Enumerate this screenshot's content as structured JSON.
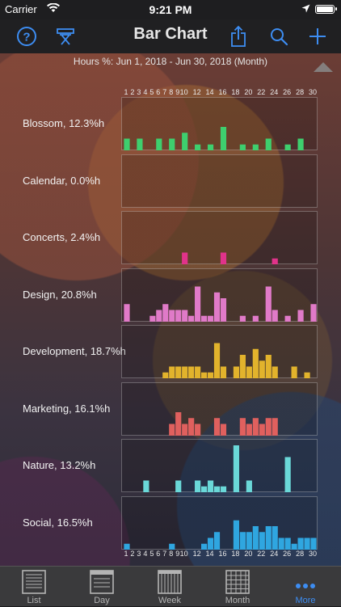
{
  "status_bar": {
    "carrier": "Carrier",
    "time": "9:21 PM"
  },
  "nav": {
    "title": "Bar Chart"
  },
  "header": {
    "subtitle": "Hours %: Jun 1, 2018 - Jun 30, 2018 (Month)"
  },
  "chart_data": {
    "type": "bar",
    "x_top_ticks": [
      "1",
      "2",
      "3",
      "4",
      "5",
      "6",
      "7",
      "8",
      "9",
      "10",
      "12",
      "14",
      "16",
      "18",
      "20",
      "22",
      "24",
      "26",
      "28",
      "30"
    ],
    "x_bottom_ticks": [
      "1",
      "2",
      "3",
      "4",
      "5",
      "6",
      "7",
      "8",
      "9",
      "10",
      "12",
      "14",
      "16",
      "18",
      "20",
      "22",
      "24",
      "26",
      "28",
      "30"
    ],
    "days": [
      1,
      2,
      3,
      4,
      5,
      6,
      7,
      8,
      9,
      10,
      11,
      12,
      13,
      14,
      15,
      16,
      17,
      18,
      19,
      20,
      21,
      22,
      23,
      24,
      25,
      26,
      27,
      28,
      29,
      30
    ],
    "ymax": 8,
    "series": [
      {
        "label": "Blossom, 12.3%h",
        "color": "#3ecf6e",
        "values": [
          2,
          0,
          2,
          0,
          0,
          2,
          0,
          2,
          0,
          3,
          0,
          1,
          0,
          1,
          0,
          4,
          0,
          0,
          1,
          0,
          1,
          0,
          2,
          0,
          0,
          1,
          0,
          2,
          0,
          0
        ]
      },
      {
        "label": "Calendar, 0.0%h",
        "color": "#5a8fd8",
        "values": [
          0,
          0,
          0,
          0,
          0,
          0,
          0,
          0,
          0,
          0,
          0,
          0,
          0,
          0,
          0,
          0,
          0,
          0,
          0,
          0,
          0,
          0,
          0,
          0,
          0,
          0,
          0,
          0,
          0,
          0
        ]
      },
      {
        "label": "Concerts, 2.4%h",
        "color": "#e0338a",
        "values": [
          0,
          0,
          0,
          0,
          0,
          0,
          0,
          0,
          0,
          2,
          0,
          0,
          0,
          0,
          0,
          2,
          0,
          0,
          0,
          0,
          0,
          0,
          0,
          1,
          0,
          0,
          0,
          0,
          0,
          0
        ]
      },
      {
        "label": "Design, 20.8%h",
        "color": "#e07ac8",
        "values": [
          3,
          0,
          0,
          0,
          1,
          2,
          3,
          2,
          2,
          2,
          1,
          6,
          1,
          1,
          5,
          4,
          0,
          0,
          1,
          0,
          1,
          0,
          6,
          2,
          0,
          1,
          0,
          2,
          0,
          3
        ]
      },
      {
        "label": "Development, 18.7%h",
        "color": "#e2b32c",
        "values": [
          0,
          0,
          0,
          0,
          0,
          0,
          1,
          2,
          2,
          2,
          2,
          2,
          1,
          1,
          6,
          2,
          0,
          2,
          4,
          2,
          5,
          3,
          4,
          2,
          0,
          0,
          2,
          0,
          1,
          0
        ]
      },
      {
        "label": "Marketing, 16.1%h",
        "color": "#e0605e",
        "values": [
          0,
          0,
          0,
          0,
          0,
          0,
          0,
          2,
          4,
          2,
          3,
          2,
          0,
          0,
          3,
          2,
          0,
          0,
          3,
          2,
          3,
          2,
          3,
          3,
          0,
          0,
          0,
          0,
          0,
          0
        ]
      },
      {
        "label": "Nature, 13.2%h",
        "color": "#6ad8d8",
        "values": [
          0,
          0,
          0,
          2,
          0,
          0,
          0,
          0,
          2,
          0,
          0,
          2,
          1,
          2,
          1,
          1,
          0,
          8,
          0,
          2,
          0,
          0,
          0,
          0,
          0,
          6,
          0,
          0,
          0,
          0
        ]
      },
      {
        "label": "Social, 16.5%h",
        "color": "#2fa6e0",
        "values": [
          1,
          0,
          0,
          0,
          0,
          0,
          0,
          1,
          0,
          0,
          0,
          0,
          1,
          2,
          3,
          0,
          0,
          5,
          3,
          3,
          4,
          3,
          4,
          4,
          2,
          2,
          1,
          2,
          2,
          2
        ]
      }
    ]
  },
  "tabs": [
    {
      "label": "List"
    },
    {
      "label": "Day"
    },
    {
      "label": "Week"
    },
    {
      "label": "Month"
    },
    {
      "label": "More"
    }
  ]
}
